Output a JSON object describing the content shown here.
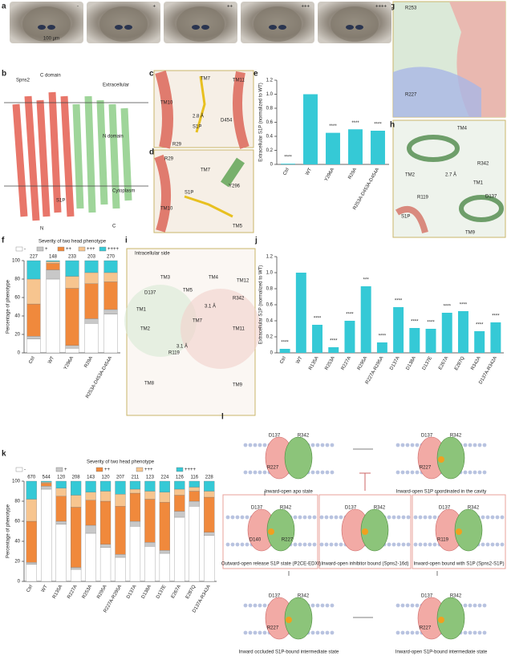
{
  "panel_labels": [
    "a",
    "b",
    "c",
    "d",
    "e",
    "f",
    "g",
    "h",
    "i",
    "j",
    "k",
    "l"
  ],
  "panel_a": {
    "labels": [
      "-",
      "+",
      "++",
      "+++",
      "++++"
    ],
    "scale": "100 μm"
  },
  "panel_b": {
    "texts": [
      "Spns2",
      "C domain",
      "Extracellular",
      "N domain",
      "Cytoplasm",
      "S1P",
      "N",
      "C"
    ]
  },
  "panel_c": {
    "texts": [
      "TM7",
      "TM11",
      "TM10",
      "2.8 Å",
      "S1P",
      "R29",
      "D454"
    ]
  },
  "panel_d": {
    "texts": [
      "R29",
      "TM7",
      "Y296",
      "TM10",
      "S1P",
      "TM5"
    ]
  },
  "panel_g": {
    "texts": [
      "R253",
      "R227"
    ]
  },
  "panel_h": {
    "texts": [
      "TM4",
      "TM2",
      "TM1",
      "R342",
      "D137",
      "R119",
      "S1P",
      "TM9",
      "2.7 Å"
    ]
  },
  "panel_i": {
    "texts": [
      "Intracellular side",
      "TM3",
      "TM4",
      "TM1",
      "TM2",
      "D137",
      "TM5",
      "TM7",
      "TM12",
      "R342",
      "TM11",
      "TM8",
      "TM9",
      "R119",
      "3.1 Å",
      "3.1 Å"
    ]
  },
  "panel_l": {
    "states": [
      {
        "label": "Inward-open apo state",
        "residues": [
          "D137",
          "R342",
          "R227"
        ]
      },
      {
        "label": "Inward-open S1P coordinated in the cavity",
        "residues": [
          "D137",
          "R342",
          "R227"
        ]
      },
      {
        "label": "Outward-open release S1P state (P2CE-EDXI)",
        "residues": [
          "D137",
          "R342",
          "D140",
          "R227"
        ]
      },
      {
        "label": "Inward-open inhibitor bound (Spns2-16d)",
        "residues": [
          "D137",
          "R342"
        ]
      },
      {
        "label": "Inward-open bound with S1P (Spns2-S1P)",
        "residues": [
          "D137",
          "R342",
          "R119"
        ]
      },
      {
        "label": "Inward occluded S1P-bound intermediate state",
        "residues": [
          "D137",
          "R342",
          "R227"
        ]
      },
      {
        "label": "Inward-open S1P-bound intermediate state",
        "residues": [
          "D137",
          "R342",
          "R227"
        ]
      }
    ]
  },
  "chart_data": [
    {
      "type": "bar",
      "ylabel": "Extracellular S1P (normalized to WT)",
      "categories": [
        "Ctrl",
        "WT",
        "Y296A",
        "R29A",
        "R253A-D453A-D454A"
      ],
      "values": [
        0.01,
        1.0,
        0.45,
        0.5,
        0.48
      ],
      "color": "#35c9d6",
      "significance": [
        "****",
        null,
        "****",
        "****",
        "****"
      ],
      "ylim": [
        0,
        1.2
      ],
      "yticks": [
        0,
        0.2,
        0.4,
        0.6,
        0.8,
        {
          "value": 1,
          "label": "1.0"
        },
        1.2
      ]
    },
    {
      "type": "stacked",
      "title": "Severity of two head phenotype",
      "ylabel": "Percentage of phenotype",
      "categories": [
        "Ctrl",
        "WT",
        "Y296A",
        "R29A",
        "R253A-D453A-D454A"
      ],
      "counts": [
        227,
        148,
        233,
        203,
        270
      ],
      "series": [
        {
          "name": "-",
          "color": "#ffffff",
          "values": [
            15,
            80,
            5,
            32,
            42
          ]
        },
        {
          "name": "+",
          "color": "#c8c8c8",
          "values": [
            3,
            10,
            3,
            5,
            5
          ]
        },
        {
          "name": "++",
          "color": "#f0893c",
          "values": [
            35,
            7,
            62,
            38,
            30
          ]
        },
        {
          "name": "+++",
          "color": "#f7c58f",
          "values": [
            27,
            2,
            13,
            12,
            10
          ]
        },
        {
          "name": "++++",
          "color": "#35c9d6",
          "values": [
            20,
            1,
            17,
            13,
            13
          ]
        }
      ],
      "ylim": [
        0,
        100
      ],
      "yticks": [
        0,
        20,
        40,
        60,
        80,
        100
      ]
    },
    {
      "type": "bar",
      "ylabel": "Extracellular S1P (normalized to WT)",
      "categories": [
        "Ctrl",
        "WT",
        "R135A",
        "R253A",
        "R227A",
        "R295A",
        "R227A-R295A",
        "D137A",
        "D138A",
        "D137E",
        "E267A",
        "E287Q",
        "R342A",
        "D137A-R342A"
      ],
      "values": [
        0.05,
        1.0,
        0.35,
        0.07,
        0.4,
        0.83,
        0.13,
        0.57,
        0.31,
        0.3,
        0.5,
        0.52,
        0.27,
        0.38
      ],
      "color": "#35c9d6",
      "significance": [
        "****",
        null,
        "****",
        "****",
        "****",
        "***",
        "****",
        "****",
        "****",
        "****",
        "****",
        "****",
        "****",
        "****"
      ],
      "ylim": [
        0,
        1.2
      ],
      "yticks": [
        0,
        0.2,
        0.4,
        0.6,
        0.8,
        {
          "value": 1,
          "label": "1.0"
        },
        1.2
      ]
    },
    {
      "type": "stacked",
      "title": "Severity of two head phenotype",
      "ylabel": "Percentage of phenotype",
      "categories": [
        "Ctrl",
        "WT",
        "R135A",
        "R227A",
        "R253A",
        "R295A",
        "R227A-R295A",
        "D137A",
        "D138A",
        "D137E",
        "E267A",
        "E287Q",
        "D137A-R342A"
      ],
      "counts": [
        670,
        544,
        120,
        208,
        143,
        120,
        207,
        211,
        123,
        224,
        126,
        116,
        228
      ],
      "series": [
        {
          "name": "-",
          "color": "#ffffff",
          "values": [
            17,
            92,
            57,
            12,
            48,
            34,
            24,
            55,
            35,
            28,
            64,
            75,
            46
          ]
        },
        {
          "name": "+",
          "color": "#c8c8c8",
          "values": [
            2,
            3,
            3,
            2,
            8,
            3,
            3,
            5,
            4,
            3,
            6,
            5,
            3
          ]
        },
        {
          "name": "++",
          "color": "#f0893c",
          "values": [
            41,
            3,
            25,
            60,
            25,
            43,
            48,
            28,
            43,
            48,
            16,
            10,
            35
          ]
        },
        {
          "name": "+++",
          "color": "#f7c58f",
          "values": [
            22,
            1,
            8,
            12,
            8,
            10,
            12,
            4,
            8,
            10,
            6,
            4,
            6
          ]
        },
        {
          "name": "++++",
          "color": "#35c9d6",
          "values": [
            18,
            1,
            7,
            14,
            11,
            10,
            13,
            8,
            10,
            11,
            8,
            6,
            10
          ]
        }
      ],
      "ylim": [
        0,
        100
      ],
      "yticks": [
        0,
        20,
        40,
        60,
        80,
        100
      ]
    }
  ]
}
